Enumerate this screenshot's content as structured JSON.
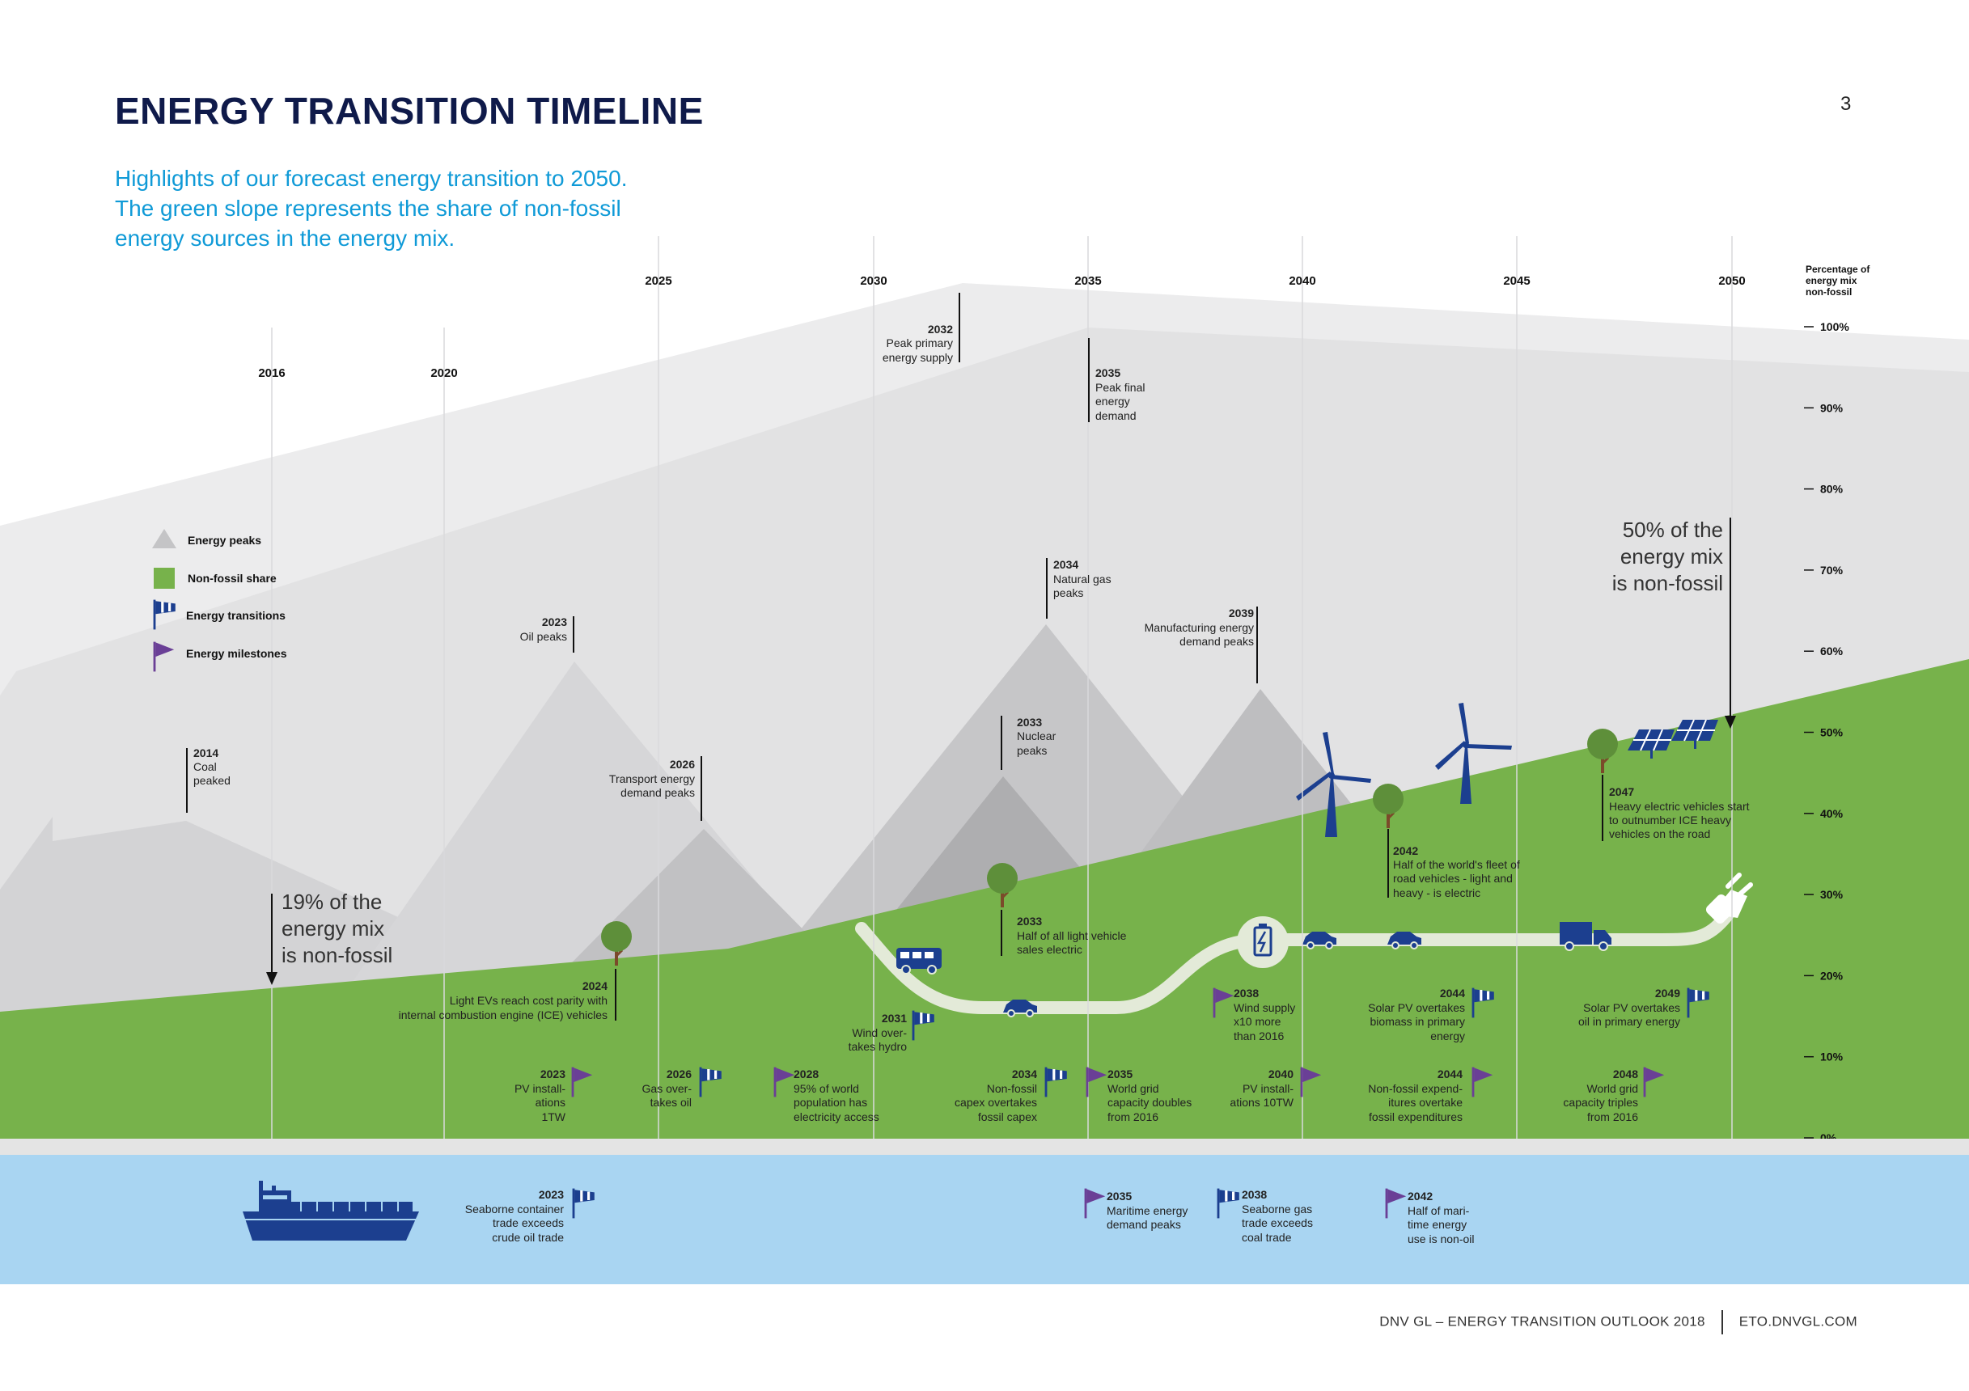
{
  "header": {
    "title": "ENERGY TRANSITION TIMELINE",
    "page_number": "3",
    "subtitle_lines": [
      "Highlights of our forecast energy transition to 2050.",
      "The green slope represents the share of non-fossil",
      "energy sources in the energy mix."
    ]
  },
  "footer": {
    "left": "DNV GL – ENERGY TRANSITION OUTLOOK 2018",
    "right": "ETO.DNVGL.COM"
  },
  "colors": {
    "green": "#77b24b",
    "sea": "#a9d5f2",
    "navy": "#1c3f8f",
    "purple": "#6a3f96",
    "title": "#0f1a4a",
    "subtitle": "#0f9ad7",
    "tree": "#5e8f3a",
    "road": "#e3ead8"
  },
  "legend": [
    {
      "icon": "mountain-icon",
      "label": "Energy peaks"
    },
    {
      "icon": "green-square-icon",
      "label": "Non-fossil share"
    },
    {
      "icon": "windsock-flag-icon",
      "label": "Energy transitions"
    },
    {
      "icon": "pennant-flag-icon",
      "label": "Energy milestones"
    }
  ],
  "axis": {
    "title_lines": [
      "Percentage of",
      "energy mix",
      "non-fossil"
    ],
    "ticks": [
      "100%",
      "90%",
      "80%",
      "70%",
      "60%",
      "50%",
      "40%",
      "30%",
      "20%",
      "10%",
      "0%"
    ]
  },
  "chart_data": {
    "type": "area",
    "x_years": [
      2016,
      2020,
      2025,
      2030,
      2035,
      2040,
      2045,
      2050
    ],
    "years_labels": [
      "2016",
      "2020",
      "2025",
      "2030",
      "2035",
      "2040",
      "2045",
      "2050"
    ],
    "non_fossil_share": [
      {
        "x": 2016,
        "y": 19
      },
      {
        "x": 2050,
        "y": 50
      }
    ],
    "ylim": [
      0,
      100
    ]
  },
  "callouts": {
    "left": [
      "19% of the",
      "energy mix",
      "is non-fossil"
    ],
    "right": [
      "50% of the",
      "energy mix",
      "is non-fossil"
    ]
  },
  "peaks": [
    {
      "year": "2014",
      "lines": [
        "Coal",
        "peaked"
      ]
    },
    {
      "year": "2023",
      "lines": [
        "Oil peaks"
      ]
    },
    {
      "year": "2026",
      "lines": [
        "Transport energy",
        "demand peaks"
      ]
    },
    {
      "year": "2032",
      "lines": [
        "Peak primary",
        "energy supply"
      ]
    },
    {
      "year": "2035",
      "lines": [
        "Peak final",
        "energy",
        "demand"
      ]
    },
    {
      "year": "2034",
      "lines": [
        "Natural gas",
        "peaks"
      ]
    },
    {
      "year": "2033",
      "lines": [
        "Nuclear",
        "peaks"
      ]
    },
    {
      "year": "2039",
      "lines": [
        "Manufacturing energy",
        "demand peaks"
      ]
    }
  ],
  "green_events": [
    {
      "year": "2024",
      "lines": [
        "Light EVs reach cost parity with",
        "internal combustion engine (ICE) vehicles"
      ]
    },
    {
      "year": "2033",
      "lines": [
        "Half of all light vehicle",
        "sales electric"
      ]
    },
    {
      "year": "2042",
      "lines": [
        "Half of the world's fleet of",
        "road vehicles - light and",
        "heavy - is electric"
      ]
    },
    {
      "year": "2047",
      "lines": [
        "Heavy electric vehicles start",
        "to outnumber ICE heavy",
        "vehicles on the road"
      ]
    }
  ],
  "flags_mid": [
    {
      "year": "2031",
      "lines": [
        "Wind over-",
        "takes hydro"
      ]
    },
    {
      "year": "2038",
      "lines": [
        "Wind supply",
        "x10 more",
        "than 2016"
      ]
    },
    {
      "year": "2044",
      "lines": [
        "Solar PV overtakes",
        "biomass in primary",
        "energy"
      ]
    },
    {
      "year": "2049",
      "lines": [
        "Solar PV overtakes",
        "oil in primary energy"
      ]
    }
  ],
  "flags_low": [
    {
      "year": "2023",
      "lines": [
        "PV install-",
        "ations",
        "1TW"
      ]
    },
    {
      "year": "2026",
      "lines": [
        "Gas over-",
        "takes oil"
      ]
    },
    {
      "year": "2028",
      "lines": [
        "95% of world",
        "population has",
        "electricity access"
      ]
    },
    {
      "year": "2034",
      "lines": [
        "Non-fossil",
        "capex overtakes",
        "fossil capex"
      ]
    },
    {
      "year": "2035",
      "lines": [
        "World grid",
        "capacity doubles",
        "from 2016"
      ]
    },
    {
      "year": "2040",
      "lines": [
        "PV install-",
        "ations 10TW"
      ]
    },
    {
      "year": "2044",
      "lines": [
        "Non-fossil expend-",
        "itures overtake",
        "fossil expenditures"
      ]
    },
    {
      "year": "2048",
      "lines": [
        "World grid",
        "capacity triples",
        "from 2016"
      ]
    }
  ],
  "sea_events": [
    {
      "year": "2023",
      "lines": [
        "Seaborne container",
        "trade exceeds",
        "crude oil trade"
      ]
    },
    {
      "year": "2035",
      "lines": [
        "Maritime energy",
        "demand peaks"
      ]
    },
    {
      "year": "2038",
      "lines": [
        "Seaborne gas",
        "trade exceeds",
        "coal trade"
      ]
    },
    {
      "year": "2042",
      "lines": [
        "Half of mari-",
        "time energy",
        "use is non-oil"
      ]
    }
  ]
}
